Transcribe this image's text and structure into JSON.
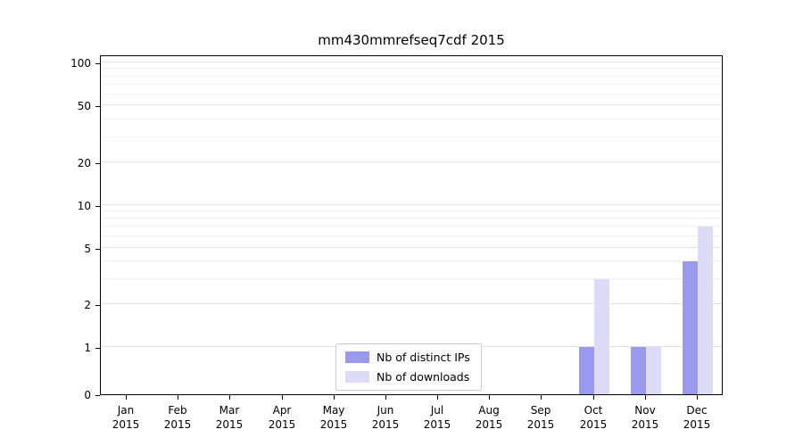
{
  "chart_data": {
    "type": "bar",
    "title": "mm430mmrefseq7cdf 2015",
    "categories": [
      "Jan",
      "Feb",
      "Mar",
      "Apr",
      "May",
      "Jun",
      "Jul",
      "Aug",
      "Sep",
      "Oct",
      "Nov",
      "Dec"
    ],
    "x_sub_label": "2015",
    "series": [
      {
        "name": "Nb of distinct IPs",
        "color": "#9999ee",
        "values": [
          0,
          0,
          0,
          0,
          0,
          0,
          0,
          0,
          0,
          1,
          1,
          4
        ]
      },
      {
        "name": "Nb of downloads",
        "color": "#dcdcf9",
        "values": [
          0,
          0,
          0,
          0,
          0,
          0,
          0,
          0,
          0,
          3,
          1,
          7
        ]
      }
    ],
    "yticks": [
      0,
      1,
      2,
      5,
      10,
      20,
      50,
      100
    ],
    "ylim": [
      0,
      100
    ],
    "yscale": "symlog",
    "grid": true,
    "legend_position": "bottom-center-inside"
  }
}
